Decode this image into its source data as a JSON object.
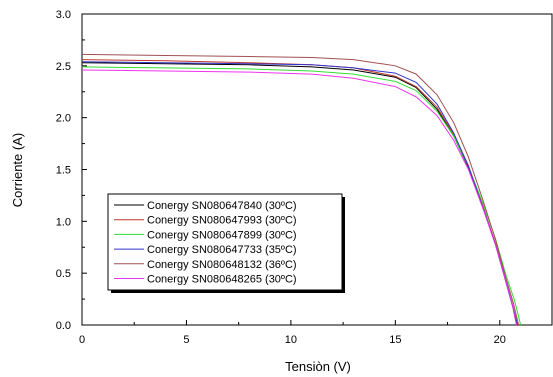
{
  "chart_data": {
    "type": "line",
    "title": "",
    "xlabel": "Tensiòn  (V)",
    "ylabel": "Corriente (A)",
    "xlim": [
      0,
      22.5
    ],
    "ylim": [
      0,
      3.0
    ],
    "xticks": [
      0,
      5,
      10,
      15,
      20
    ],
    "yticks": [
      0.0,
      0.5,
      1.0,
      1.5,
      2.0,
      2.5,
      3.0
    ],
    "xtick_labels": [
      "0",
      "5",
      "10",
      "15",
      "20"
    ],
    "ytick_labels": [
      "0.0",
      "0.5",
      "1.0",
      "1.5",
      "2.0",
      "2.5",
      "3.0"
    ],
    "grid": false,
    "legend_position": "lower-left",
    "series": [
      {
        "name": "Conergy SN080647840 (30ºC)",
        "color": "#000000",
        "x": [
          0,
          4,
          8,
          11,
          13,
          15,
          16,
          17,
          17.8,
          18.5,
          19.2,
          19.8,
          20.3,
          20.6,
          20.85
        ],
        "y": [
          2.53,
          2.52,
          2.51,
          2.49,
          2.46,
          2.39,
          2.29,
          2.08,
          1.82,
          1.52,
          1.13,
          0.78,
          0.42,
          0.2,
          0.0
        ]
      },
      {
        "name": "Conergy SN080647993 (30ºC)",
        "color": "#c0392b",
        "x": [
          0,
          4,
          8,
          11,
          13,
          15,
          16,
          17,
          17.8,
          18.5,
          19.2,
          19.8,
          20.3,
          20.6,
          20.8
        ],
        "y": [
          2.56,
          2.55,
          2.53,
          2.51,
          2.48,
          2.4,
          2.3,
          2.1,
          1.84,
          1.54,
          1.14,
          0.78,
          0.42,
          0.2,
          0.0
        ]
      },
      {
        "name": "Conergy SN080647899 (30ºC)",
        "color": "#33dd33",
        "x": [
          0,
          4,
          8,
          11,
          13,
          15,
          16,
          17,
          17.8,
          18.5,
          19.2,
          19.8,
          20.3,
          20.7,
          21.0
        ],
        "y": [
          2.49,
          2.48,
          2.47,
          2.45,
          2.42,
          2.35,
          2.26,
          2.06,
          1.82,
          1.53,
          1.17,
          0.83,
          0.48,
          0.24,
          0.0
        ]
      },
      {
        "name": "Conergy SN080647733 (35ºC)",
        "color": "#3333cc",
        "x": [
          0,
          4,
          8,
          11,
          13,
          15,
          16,
          17,
          17.8,
          18.5,
          19.2,
          19.8,
          20.3,
          20.6,
          20.85
        ],
        "y": [
          2.54,
          2.53,
          2.52,
          2.51,
          2.48,
          2.43,
          2.34,
          2.13,
          1.85,
          1.53,
          1.13,
          0.77,
          0.41,
          0.19,
          0.0
        ]
      },
      {
        "name": "Conergy SN080648132 (36ºC)",
        "color": "#a05050",
        "x": [
          0,
          4,
          8,
          11,
          13,
          15,
          16,
          17,
          17.8,
          18.5,
          19.2,
          19.8,
          20.3,
          20.65,
          20.9
        ],
        "y": [
          2.61,
          2.6,
          2.59,
          2.58,
          2.56,
          2.5,
          2.42,
          2.22,
          1.95,
          1.62,
          1.2,
          0.82,
          0.45,
          0.21,
          0.0
        ]
      },
      {
        "name": "Conergy SN080648265 (30ºC)",
        "color": "#ee33ee",
        "x": [
          0,
          4,
          8,
          11,
          13,
          15,
          16,
          17,
          17.8,
          18.5,
          19.2,
          19.8,
          20.3,
          20.6,
          20.8
        ],
        "y": [
          2.46,
          2.45,
          2.44,
          2.42,
          2.38,
          2.3,
          2.2,
          2.02,
          1.78,
          1.5,
          1.12,
          0.77,
          0.42,
          0.2,
          0.0
        ]
      }
    ]
  }
}
